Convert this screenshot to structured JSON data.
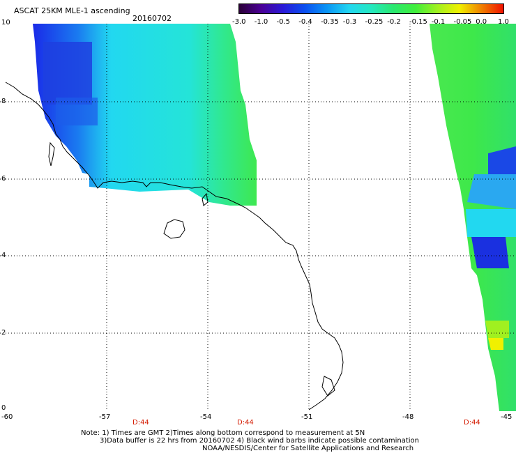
{
  "header": {
    "title": "ASCAT 25KM MLE-1 ascending",
    "date": "20160702"
  },
  "colorbar": {
    "labels": [
      "-3.0",
      "-1.0",
      "-0.5",
      "-0.4",
      "-0.35",
      "-0.3",
      "-0.25",
      "-0.2",
      "-0.15",
      "-0.1",
      "-0.05",
      "0.0",
      "1.0"
    ],
    "colors": [
      "#2a0036",
      "#4a0095",
      "#2a1ad8",
      "#0a50f0",
      "#0a96f5",
      "#22d6f0",
      "#25e8c0",
      "#2ae870",
      "#40ee3c",
      "#a0f020",
      "#f0f000",
      "#f08000",
      "#f01000"
    ]
  },
  "axes": {
    "y_ticks": [
      "10",
      "8",
      "6",
      "4",
      "2",
      "0"
    ],
    "x_ticks": [
      "-60",
      "-57",
      "-54",
      "-51",
      "-48",
      "-45"
    ],
    "time_labels": [
      "D:44",
      "D:44",
      "D:44"
    ]
  },
  "footer": {
    "line1": "Note: 1) Times are GMT 2)Times along bottom correspond to measurement at 5N",
    "line2": "3)Data buffer is 22 hrs from 20160702 4) Black wind barbs indicate possible contamination",
    "line3": "NOAA/NESDIS/Center for Satellite Applications and Research"
  }
}
